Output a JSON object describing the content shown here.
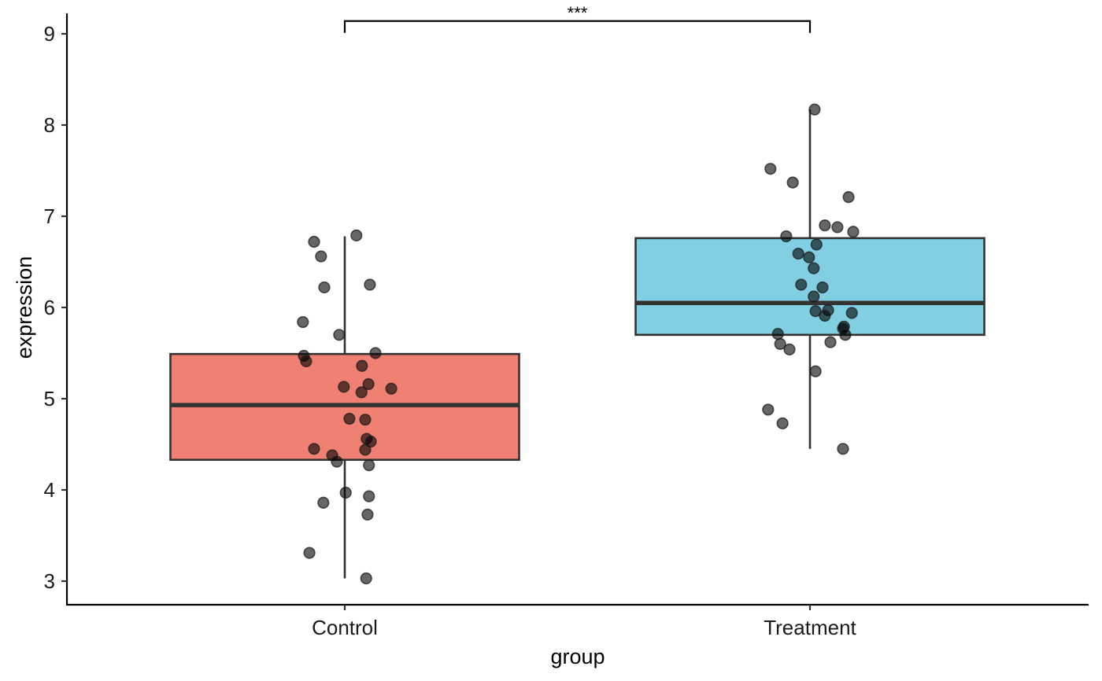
{
  "chart_data": {
    "type": "boxplot",
    "title": "",
    "xlabel": "group",
    "ylabel": "expression",
    "ylim": [
      2.74,
      9.24
    ],
    "yticks": [
      3,
      4,
      5,
      6,
      7,
      8,
      9
    ],
    "grid": false,
    "legend": "none",
    "categories": [
      "Control",
      "Treatment"
    ],
    "boxes": [
      {
        "name": "Control",
        "color": "#F08172",
        "whisker_low": 3.03,
        "q1": 4.33,
        "median": 4.93,
        "q3": 5.49,
        "whisker_high": 6.78
      },
      {
        "name": "Treatment",
        "color": "#80CFE2",
        "whisker_low": 4.45,
        "q1": 5.7,
        "median": 6.05,
        "q3": 6.76,
        "whisker_high": 8.17
      }
    ],
    "points": [
      {
        "group": "Control",
        "jitter": -0.066,
        "value": 6.72
      },
      {
        "group": "Control",
        "jitter": 0.025,
        "value": 6.79
      },
      {
        "group": "Control",
        "jitter": -0.051,
        "value": 6.56
      },
      {
        "group": "Control",
        "jitter": -0.044,
        "value": 6.22
      },
      {
        "group": "Control",
        "jitter": 0.054,
        "value": 6.25
      },
      {
        "group": "Control",
        "jitter": -0.09,
        "value": 5.84
      },
      {
        "group": "Control",
        "jitter": -0.012,
        "value": 5.7
      },
      {
        "group": "Control",
        "jitter": -0.088,
        "value": 5.47
      },
      {
        "group": "Control",
        "jitter": -0.083,
        "value": 5.41
      },
      {
        "group": "Control",
        "jitter": 0.066,
        "value": 5.5
      },
      {
        "group": "Control",
        "jitter": 0.037,
        "value": 5.36
      },
      {
        "group": "Control",
        "jitter": -0.002,
        "value": 5.13
      },
      {
        "group": "Control",
        "jitter": 0.051,
        "value": 5.16
      },
      {
        "group": "Control",
        "jitter": 0.1,
        "value": 5.11
      },
      {
        "group": "Control",
        "jitter": 0.036,
        "value": 5.07
      },
      {
        "group": "Control",
        "jitter": 0.01,
        "value": 4.78
      },
      {
        "group": "Control",
        "jitter": 0.044,
        "value": 4.77
      },
      {
        "group": "Control",
        "jitter": 0.047,
        "value": 4.56
      },
      {
        "group": "Control",
        "jitter": 0.056,
        "value": 4.53
      },
      {
        "group": "Control",
        "jitter": -0.066,
        "value": 4.45
      },
      {
        "group": "Control",
        "jitter": -0.027,
        "value": 4.38
      },
      {
        "group": "Control",
        "jitter": -0.017,
        "value": 4.31
      },
      {
        "group": "Control",
        "jitter": 0.044,
        "value": 4.44
      },
      {
        "group": "Control",
        "jitter": 0.052,
        "value": 4.27
      },
      {
        "group": "Control",
        "jitter": 0.002,
        "value": 3.97
      },
      {
        "group": "Control",
        "jitter": 0.052,
        "value": 3.93
      },
      {
        "group": "Control",
        "jitter": -0.046,
        "value": 3.86
      },
      {
        "group": "Control",
        "jitter": 0.049,
        "value": 3.73
      },
      {
        "group": "Control",
        "jitter": -0.076,
        "value": 3.31
      },
      {
        "group": "Control",
        "jitter": 0.046,
        "value": 3.03
      },
      {
        "group": "Treatment",
        "jitter": 0.01,
        "value": 8.17
      },
      {
        "group": "Treatment",
        "jitter": -0.085,
        "value": 7.52
      },
      {
        "group": "Treatment",
        "jitter": -0.037,
        "value": 7.37
      },
      {
        "group": "Treatment",
        "jitter": 0.083,
        "value": 7.21
      },
      {
        "group": "Treatment",
        "jitter": -0.051,
        "value": 6.78
      },
      {
        "group": "Treatment",
        "jitter": 0.032,
        "value": 6.9
      },
      {
        "group": "Treatment",
        "jitter": 0.059,
        "value": 6.88
      },
      {
        "group": "Treatment",
        "jitter": 0.093,
        "value": 6.83
      },
      {
        "group": "Treatment",
        "jitter": 0.014,
        "value": 6.69
      },
      {
        "group": "Treatment",
        "jitter": -0.025,
        "value": 6.59
      },
      {
        "group": "Treatment",
        "jitter": -0.002,
        "value": 6.55
      },
      {
        "group": "Treatment",
        "jitter": 0.008,
        "value": 6.43
      },
      {
        "group": "Treatment",
        "jitter": -0.019,
        "value": 6.25
      },
      {
        "group": "Treatment",
        "jitter": 0.027,
        "value": 6.22
      },
      {
        "group": "Treatment",
        "jitter": 0.008,
        "value": 6.12
      },
      {
        "group": "Treatment",
        "jitter": 0.012,
        "value": 5.96
      },
      {
        "group": "Treatment",
        "jitter": 0.039,
        "value": 5.97
      },
      {
        "group": "Treatment",
        "jitter": 0.032,
        "value": 5.91
      },
      {
        "group": "Treatment",
        "jitter": 0.09,
        "value": 5.94
      },
      {
        "group": "Treatment",
        "jitter": 0.073,
        "value": 5.79
      },
      {
        "group": "Treatment",
        "jitter": 0.071,
        "value": 5.77
      },
      {
        "group": "Treatment",
        "jitter": 0.076,
        "value": 5.7
      },
      {
        "group": "Treatment",
        "jitter": -0.069,
        "value": 5.71
      },
      {
        "group": "Treatment",
        "jitter": -0.064,
        "value": 5.6
      },
      {
        "group": "Treatment",
        "jitter": -0.044,
        "value": 5.54
      },
      {
        "group": "Treatment",
        "jitter": 0.044,
        "value": 5.62
      },
      {
        "group": "Treatment",
        "jitter": 0.012,
        "value": 5.3
      },
      {
        "group": "Treatment",
        "jitter": -0.09,
        "value": 4.88
      },
      {
        "group": "Treatment",
        "jitter": -0.059,
        "value": 4.73
      },
      {
        "group": "Treatment",
        "jitter": 0.071,
        "value": 4.45
      }
    ],
    "annotations": [
      {
        "type": "significance-bracket",
        "from": "Control",
        "to": "Treatment",
        "y": 9.14,
        "label": "***"
      }
    ]
  }
}
